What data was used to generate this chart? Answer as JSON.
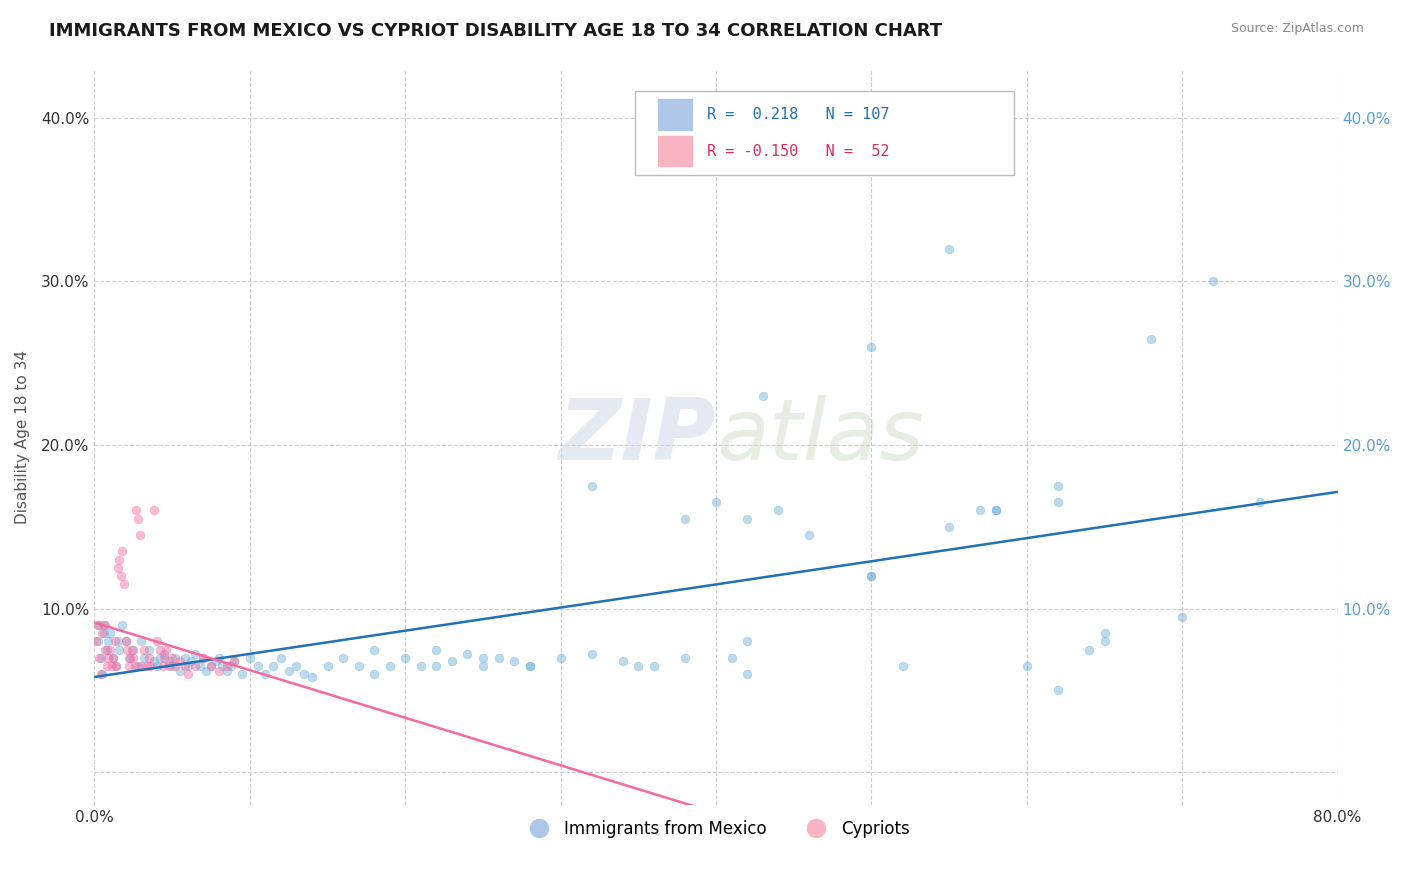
{
  "title": "IMMIGRANTS FROM MEXICO VS CYPRIOT DISABILITY AGE 18 TO 34 CORRELATION CHART",
  "source_text": "Source: ZipAtlas.com",
  "ylabel": "Disability Age 18 to 34",
  "xlim": [
    0.0,
    0.8
  ],
  "ylim": [
    -0.02,
    0.43
  ],
  "x_ticks": [
    0.0,
    0.1,
    0.2,
    0.3,
    0.4,
    0.5,
    0.6,
    0.7,
    0.8
  ],
  "y_ticks": [
    0.0,
    0.1,
    0.2,
    0.3,
    0.4
  ],
  "watermark_zip": "ZIP",
  "watermark_atlas": "atlas",
  "blue_color": "#6baed6",
  "pink_color": "#f768a1",
  "blue_line_color": "#2171b5",
  "pink_line_color": "#f768a1",
  "background_color": "#ffffff",
  "grid_color": "#cccccc",
  "scatter_alpha": 0.45,
  "scatter_size": 38,
  "blue_scatter_x": [
    0.002,
    0.003,
    0.004,
    0.005,
    0.006,
    0.007,
    0.008,
    0.009,
    0.01,
    0.012,
    0.014,
    0.015,
    0.016,
    0.018,
    0.02,
    0.022,
    0.025,
    0.028,
    0.03,
    0.032,
    0.035,
    0.038,
    0.04,
    0.042,
    0.045,
    0.048,
    0.05,
    0.052,
    0.055,
    0.058,
    0.06,
    0.062,
    0.065,
    0.068,
    0.07,
    0.072,
    0.075,
    0.078,
    0.08,
    0.082,
    0.085,
    0.088,
    0.09,
    0.095,
    0.1,
    0.105,
    0.11,
    0.115,
    0.12,
    0.125,
    0.13,
    0.135,
    0.14,
    0.15,
    0.16,
    0.17,
    0.18,
    0.19,
    0.2,
    0.21,
    0.22,
    0.23,
    0.24,
    0.25,
    0.26,
    0.27,
    0.28,
    0.3,
    0.32,
    0.34,
    0.36,
    0.38,
    0.4,
    0.42,
    0.44,
    0.46,
    0.5,
    0.55,
    0.58,
    0.62,
    0.65,
    0.68,
    0.72,
    0.75,
    0.5,
    0.52,
    0.55,
    0.57,
    0.6,
    0.41,
    0.42,
    0.43,
    0.58,
    0.62,
    0.64,
    0.65,
    0.7,
    0.62,
    0.42,
    0.28,
    0.25,
    0.32,
    0.38,
    0.22,
    0.18,
    0.35,
    0.5
  ],
  "blue_scatter_y": [
    0.08,
    0.09,
    0.07,
    0.06,
    0.085,
    0.09,
    0.075,
    0.08,
    0.085,
    0.07,
    0.065,
    0.08,
    0.075,
    0.09,
    0.08,
    0.07,
    0.075,
    0.065,
    0.08,
    0.07,
    0.075,
    0.068,
    0.065,
    0.07,
    0.072,
    0.068,
    0.065,
    0.07,
    0.062,
    0.07,
    0.065,
    0.068,
    0.072,
    0.065,
    0.07,
    0.062,
    0.065,
    0.068,
    0.07,
    0.065,
    0.062,
    0.065,
    0.068,
    0.06,
    0.07,
    0.065,
    0.06,
    0.065,
    0.07,
    0.062,
    0.065,
    0.06,
    0.058,
    0.065,
    0.07,
    0.065,
    0.06,
    0.065,
    0.07,
    0.065,
    0.075,
    0.068,
    0.072,
    0.065,
    0.07,
    0.068,
    0.065,
    0.07,
    0.072,
    0.068,
    0.065,
    0.155,
    0.165,
    0.155,
    0.16,
    0.145,
    0.12,
    0.15,
    0.16,
    0.175,
    0.085,
    0.265,
    0.3,
    0.165,
    0.26,
    0.065,
    0.32,
    0.16,
    0.065,
    0.07,
    0.08,
    0.23,
    0.16,
    0.165,
    0.075,
    0.08,
    0.095,
    0.05,
    0.06,
    0.065,
    0.07,
    0.175,
    0.07,
    0.065,
    0.075,
    0.065,
    0.12
  ],
  "pink_scatter_x": [
    0.001,
    0.002,
    0.003,
    0.004,
    0.005,
    0.006,
    0.007,
    0.008,
    0.009,
    0.01,
    0.011,
    0.012,
    0.013,
    0.014,
    0.015,
    0.016,
    0.017,
    0.018,
    0.019,
    0.02,
    0.021,
    0.022,
    0.023,
    0.024,
    0.025,
    0.026,
    0.027,
    0.028,
    0.029,
    0.03,
    0.032,
    0.034,
    0.035,
    0.036,
    0.038,
    0.04,
    0.042,
    0.044,
    0.045,
    0.046,
    0.048,
    0.05,
    0.052,
    0.055,
    0.058,
    0.06,
    0.065,
    0.07,
    0.075,
    0.08,
    0.085,
    0.09
  ],
  "pink_scatter_y": [
    0.08,
    0.09,
    0.07,
    0.06,
    0.085,
    0.09,
    0.075,
    0.065,
    0.07,
    0.075,
    0.065,
    0.07,
    0.08,
    0.065,
    0.125,
    0.13,
    0.12,
    0.135,
    0.115,
    0.08,
    0.075,
    0.065,
    0.07,
    0.075,
    0.07,
    0.065,
    0.16,
    0.155,
    0.145,
    0.065,
    0.075,
    0.065,
    0.07,
    0.065,
    0.16,
    0.08,
    0.075,
    0.065,
    0.07,
    0.075,
    0.065,
    0.07,
    0.065,
    0.068,
    0.065,
    0.06,
    0.065,
    0.07,
    0.065,
    0.062,
    0.065,
    0.068
  ]
}
